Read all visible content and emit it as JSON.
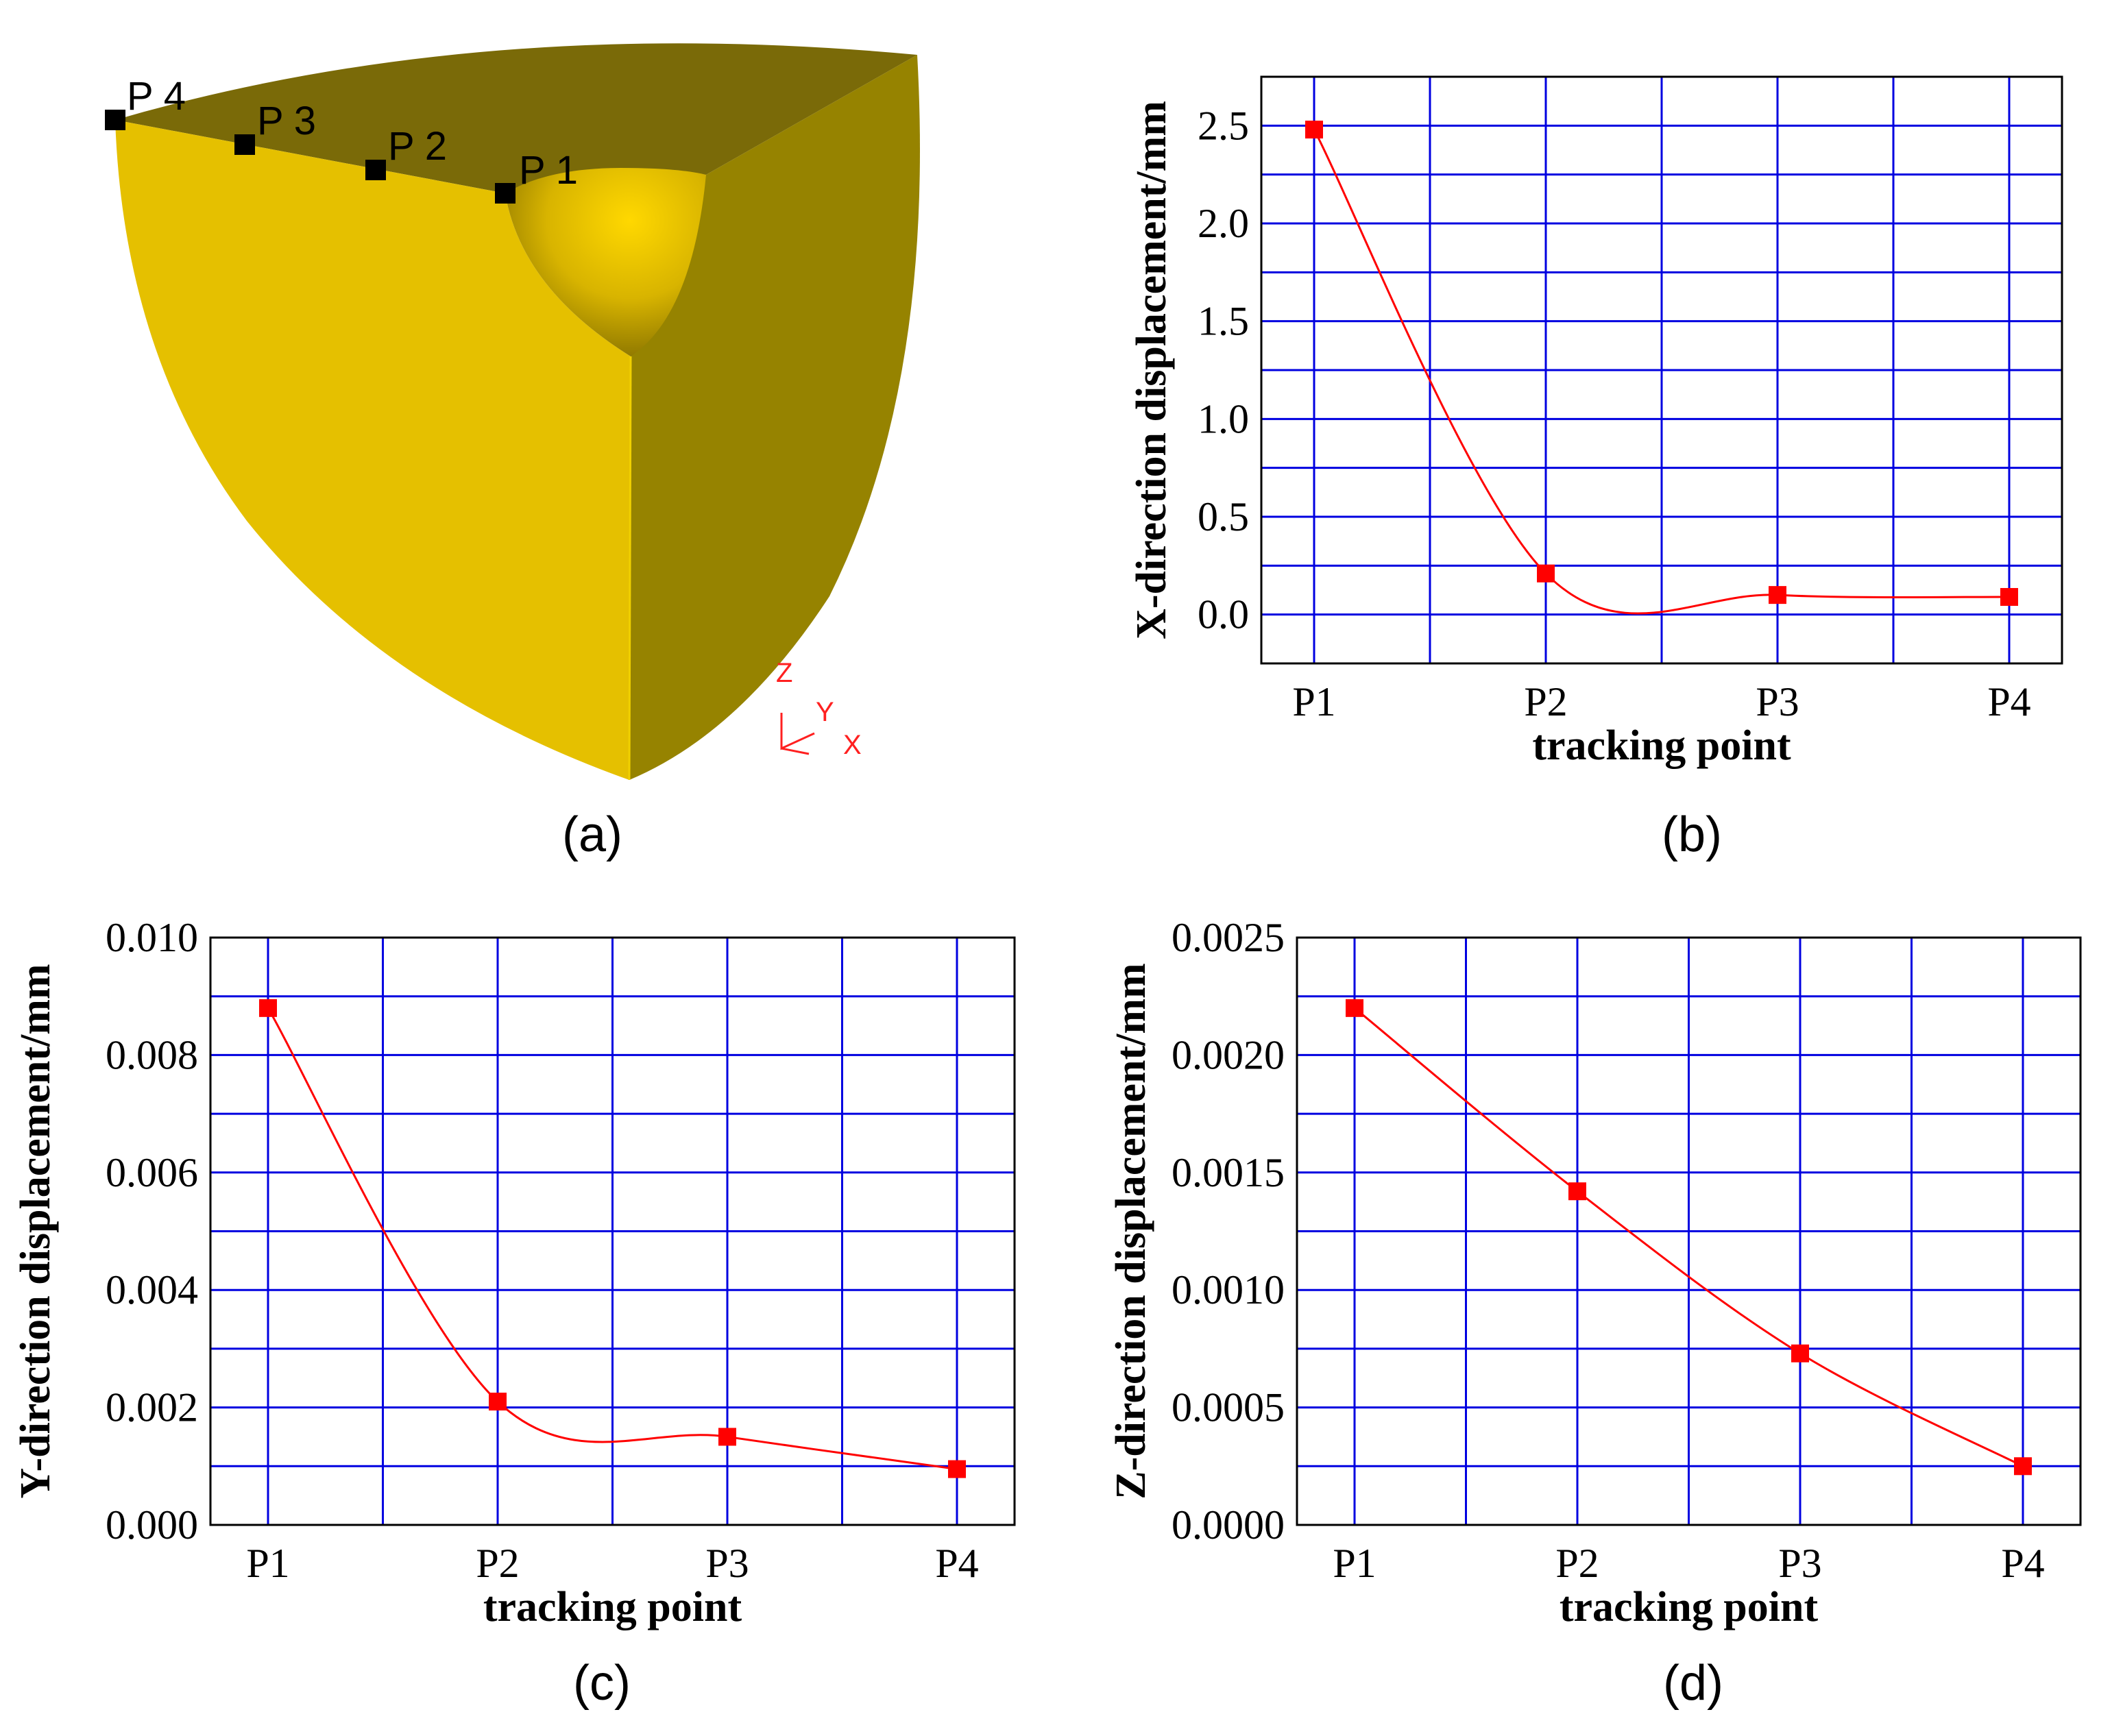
{
  "model_panel": {
    "caption": "(a)",
    "tracking_points": [
      {
        "label": "P 1"
      },
      {
        "label": "P 2"
      },
      {
        "label": "P 3"
      },
      {
        "label": "P 4"
      }
    ],
    "triad": {
      "z": "Z",
      "y": "Y",
      "x": "X"
    },
    "colors": {
      "front_face": "#e5c000",
      "side_face": "#968300",
      "top_face": "#7a6a08",
      "marker": "#000000"
    }
  },
  "chart_data": [
    {
      "id": "b",
      "caption": "(b)",
      "type": "line",
      "categories": [
        "P1",
        "P2",
        "P3",
        "P4"
      ],
      "values": [
        2.48,
        0.21,
        0.1,
        0.09
      ],
      "xlabel": "tracking point",
      "ylabel": "X-direction displacement/mm",
      "ylim": [
        -0.25,
        2.75
      ],
      "yticks": [
        "0.0",
        "0.5",
        "1.0",
        "1.5",
        "2.0",
        "2.5"
      ],
      "ytick_values": [
        0,
        0.5,
        1.0,
        1.5,
        2.0,
        2.5
      ],
      "grid": true,
      "color": "#ff0000"
    },
    {
      "id": "c",
      "caption": "(c)",
      "type": "line",
      "categories": [
        "P1",
        "P2",
        "P3",
        "P4"
      ],
      "values": [
        0.0088,
        0.0021,
        0.0015,
        0.00095
      ],
      "xlabel": "tracking point",
      "ylabel": "Y-direction displacement/mm",
      "ylim": [
        0,
        0.01
      ],
      "yticks": [
        "0.000",
        "0.002",
        "0.004",
        "0.006",
        "0.008",
        "0.010"
      ],
      "ytick_values": [
        0,
        0.002,
        0.004,
        0.006,
        0.008,
        0.01
      ],
      "grid": true,
      "color": "#ff0000"
    },
    {
      "id": "d",
      "caption": "(d)",
      "type": "line",
      "categories": [
        "P1",
        "P2",
        "P3",
        "P4"
      ],
      "values": [
        0.0022,
        0.00142,
        0.00073,
        0.00025
      ],
      "xlabel": "tracking point",
      "ylabel": "Z-direction displacement/mm",
      "ylim": [
        0,
        0.0025
      ],
      "yticks": [
        "0.0000",
        "0.0005",
        "0.0010",
        "0.0015",
        "0.0020",
        "0.0025"
      ],
      "ytick_values": [
        0,
        0.0005,
        0.001,
        0.0015,
        0.002,
        0.0025
      ],
      "grid": true,
      "color": "#ff0000"
    }
  ]
}
